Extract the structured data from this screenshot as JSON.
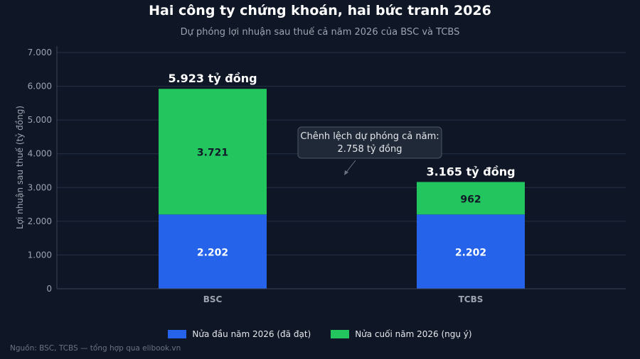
{
  "title": "Hai công ty chứng khoán, hai bức tranh 2026",
  "subtitle": "Dự phóng lợi nhuận sau thuế cả năm 2026 của BSC và TCBS",
  "source": "Nguồn: BSC, TCBS — tổng hợp qua elibook.vn",
  "colors": {
    "first_half": "#2563eb",
    "second_half": "#22c55e",
    "background": "#0f1726"
  },
  "chart_data": {
    "type": "bar",
    "stacked": true,
    "categories": [
      "BSC",
      "TCBS"
    ],
    "series": [
      {
        "name": "Nửa đầu năm 2026 (đã đạt)",
        "values": [
          2202,
          2202
        ],
        "labels": [
          "2.202",
          "2.202"
        ]
      },
      {
        "name": "Nửa cuối năm 2026 (ngụ ý)",
        "values": [
          3721,
          962
        ],
        "labels": [
          "3.721",
          "962"
        ]
      }
    ],
    "totals": [
      5923,
      3165
    ],
    "total_labels": [
      "5.923 tỷ đồng",
      "3.165 tỷ đồng"
    ],
    "ylabel": "Lợi nhuận sau thuế (tỷ đồng)",
    "xlabel": "",
    "ylim": [
      0,
      7000
    ],
    "yticks": [
      0,
      1000,
      2000,
      3000,
      4000,
      5000,
      6000,
      7000
    ],
    "ytick_labels": [
      "0",
      "1.000",
      "2.000",
      "3.000",
      "4.000",
      "5.000",
      "6.000",
      "7.000"
    ],
    "grid": true,
    "legend_position": "bottom",
    "annotation": {
      "line1": "Chênh lệch dự phóng cả năm:",
      "line2": "2.758 tỷ đồng"
    }
  }
}
